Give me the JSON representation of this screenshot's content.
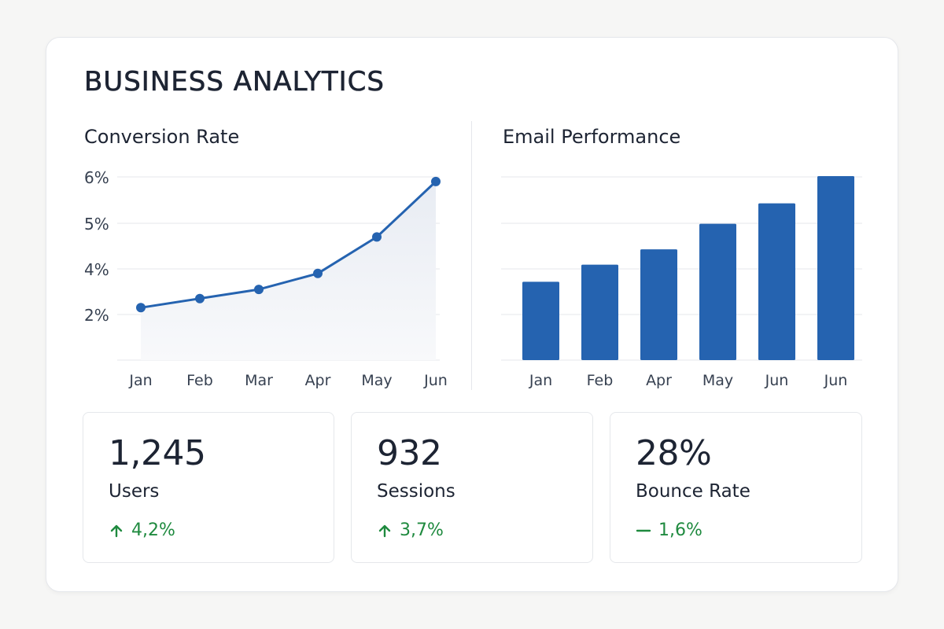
{
  "page_title": "BUSINESS ANALYTICS",
  "colors": {
    "accent": "#2563b0",
    "positive": "#1f8a3f",
    "text": "#1d2433",
    "grid": "#e5e7eb",
    "area_fill": "#eef1f6"
  },
  "chart_data": [
    {
      "type": "line",
      "title": "Conversion Rate",
      "categories": [
        "Jan",
        "Feb",
        "Mar",
        "Apr",
        "May",
        "Jun"
      ],
      "values": [
        2.3,
        2.7,
        3.1,
        3.8,
        4.7,
        5.9
      ],
      "y_ticks": [
        {
          "value": 2,
          "label": "2%"
        },
        {
          "value": 4,
          "label": "4%"
        },
        {
          "value": 5,
          "label": "5%"
        },
        {
          "value": 6,
          "label": "6%"
        }
      ],
      "area_fill": true,
      "grid": true,
      "legend": "none"
    },
    {
      "type": "bar",
      "title": "Email Performance",
      "categories": [
        "Jan",
        "Feb",
        "Apr",
        "May",
        "Jun",
        "Jun"
      ],
      "values": [
        46,
        56,
        65,
        80,
        92,
        108
      ],
      "ylim": [
        0,
        120
      ],
      "grid": true,
      "legend": "none"
    }
  ],
  "kpis": [
    {
      "value": "1,245",
      "label": "Users",
      "change": "4,2%",
      "trend_icon": "arrow-up-icon"
    },
    {
      "value": "932",
      "label": "Sessions",
      "change": "3,7%",
      "trend_icon": "arrow-up-icon"
    },
    {
      "value": "28%",
      "label": "Bounce Rate",
      "change": "1,6%",
      "trend_icon": "dash-icon"
    }
  ]
}
